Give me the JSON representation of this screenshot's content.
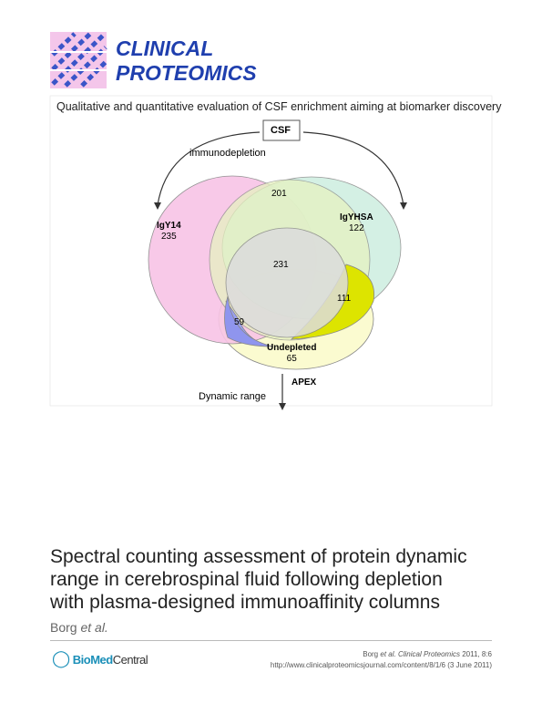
{
  "journal": {
    "name_line1": "CLINICAL",
    "name_line2": "PROTEOMICS"
  },
  "figure": {
    "caption": "Qualitative and quantitative evaluation of CSF enrichment aiming at biomarker discovery",
    "source": "CSF",
    "left_arrow_label": "immunodepletion",
    "regions": [
      {
        "label": "IgY14",
        "count": 235
      },
      {
        "label": "IgYHSA",
        "count": 122
      },
      {
        "count": 201
      },
      {
        "count": 231
      },
      {
        "count": 111
      },
      {
        "count": 59
      },
      {
        "label": "Undepleted",
        "count": 65
      }
    ],
    "bottom_label": "APEX",
    "axis_label": "Dynamic range"
  },
  "article": {
    "title_lines": [
      "Spectral counting assessment of protein dynamic",
      "range in cerebrospinal fluid following depletion",
      "with plasma-designed immunoaffinity columns"
    ],
    "author": "Borg",
    "author_suffix": "et al."
  },
  "publisher": {
    "name_part1": "BioMed",
    "name_part2": "Central"
  },
  "citation": {
    "author": "Borg",
    "et_al": "et al.",
    "journal": "Clinical Proteomics",
    "volume": "2011, 8:6",
    "url": "http://www.clinicalproteomicsjournal.com/content/8/1/6 (3 June 2011)"
  }
}
